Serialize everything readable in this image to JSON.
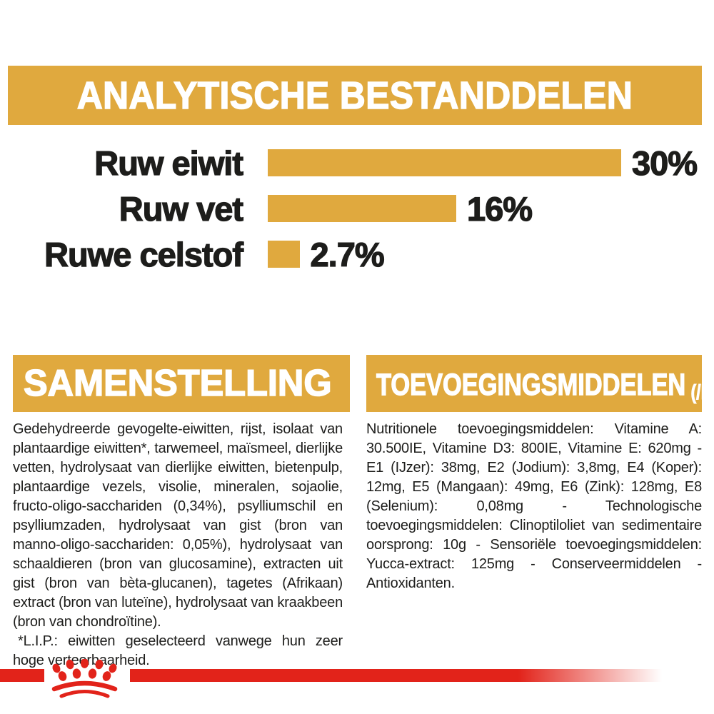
{
  "colors": {
    "gold": "#E0A93E",
    "red": "#E2231A",
    "text": "#1D1D1B",
    "banner_text": "#FFFFFF",
    "background": "#FFFFFF"
  },
  "analytical_section": {
    "title": "ANALYTISCHE BESTANDDELEN",
    "rows": [
      {
        "label": "Ruw eiwit",
        "value_label": "30%",
        "percent": 30
      },
      {
        "label": "Ruw vet",
        "value_label": "16%",
        "percent": 16
      },
      {
        "label": "Ruwe celstof",
        "value_label": "2.7%",
        "percent": 2.7
      }
    ]
  },
  "chart_data": {
    "type": "bar",
    "orientation": "horizontal",
    "title": "ANALYTISCHE BESTANDDELEN",
    "categories": [
      "Ruw eiwit",
      "Ruw vet",
      "Ruwe celstof"
    ],
    "values": [
      30,
      16,
      2.7
    ],
    "value_labels": [
      "30%",
      "16%",
      "2.7%"
    ],
    "unit": "%",
    "xlim": [
      0,
      30
    ],
    "bar_color": "#E0A93E",
    "grid": false,
    "legend": false
  },
  "composition_section": {
    "title": "SAMENSTELLING",
    "body": "Gedehydreerde gevogelte-eiwitten, rijst, isolaat van plantaardige eiwitten*, tarwemeel, maïsmeel, dierlijke vetten, hydrolysaat van dierlijke eiwitten, bietenpulp, plantaardige vezels, visolie, mineralen, sojaolie, fructo-oligo-sacchariden (0,34%), psylliumschil en psylliumzaden, hydrolysaat van gist (bron van manno-oligo-sacchariden: 0,05%), hydrolysaat van schaaldieren (bron van glucosamine), extracten uit gist (bron van bèta-glucanen), tagetes (Afrikaan) extract (bron van luteïne), hydrolysaat van kraakbeen (bron van chondroïtine).",
    "footnote": "*L.I.P.: eiwitten geselecteerd vanwege hun zeer hoge verteerbaarheid."
  },
  "additives_section": {
    "title": "TOEVOEGINGSMIDDELEN",
    "title_suffix": "(/kg)",
    "body": "Nutritionele toevoegingsmiddelen: Vitamine A: 30.500IE, Vitamine D3: 800IE, Vitamine E: 620mg - E1 (IJzer): 38mg, E2 (Jodium): 3,8mg, E4 (Koper): 12mg, E5 (Mangaan): 49mg, E6 (Zink): 128mg, E8 (Selenium): 0,08mg - Technologische toevoegingsmiddelen: Clinoptiloliet van sedimentaire oorsprong: 10g - Sensoriële toevoegingsmiddelen: Yucca-extract: 125mg - Conserveermiddelen - Antioxidanten."
  },
  "footer": {
    "brand_icon": "royal-canin-crown-paw-icon"
  }
}
